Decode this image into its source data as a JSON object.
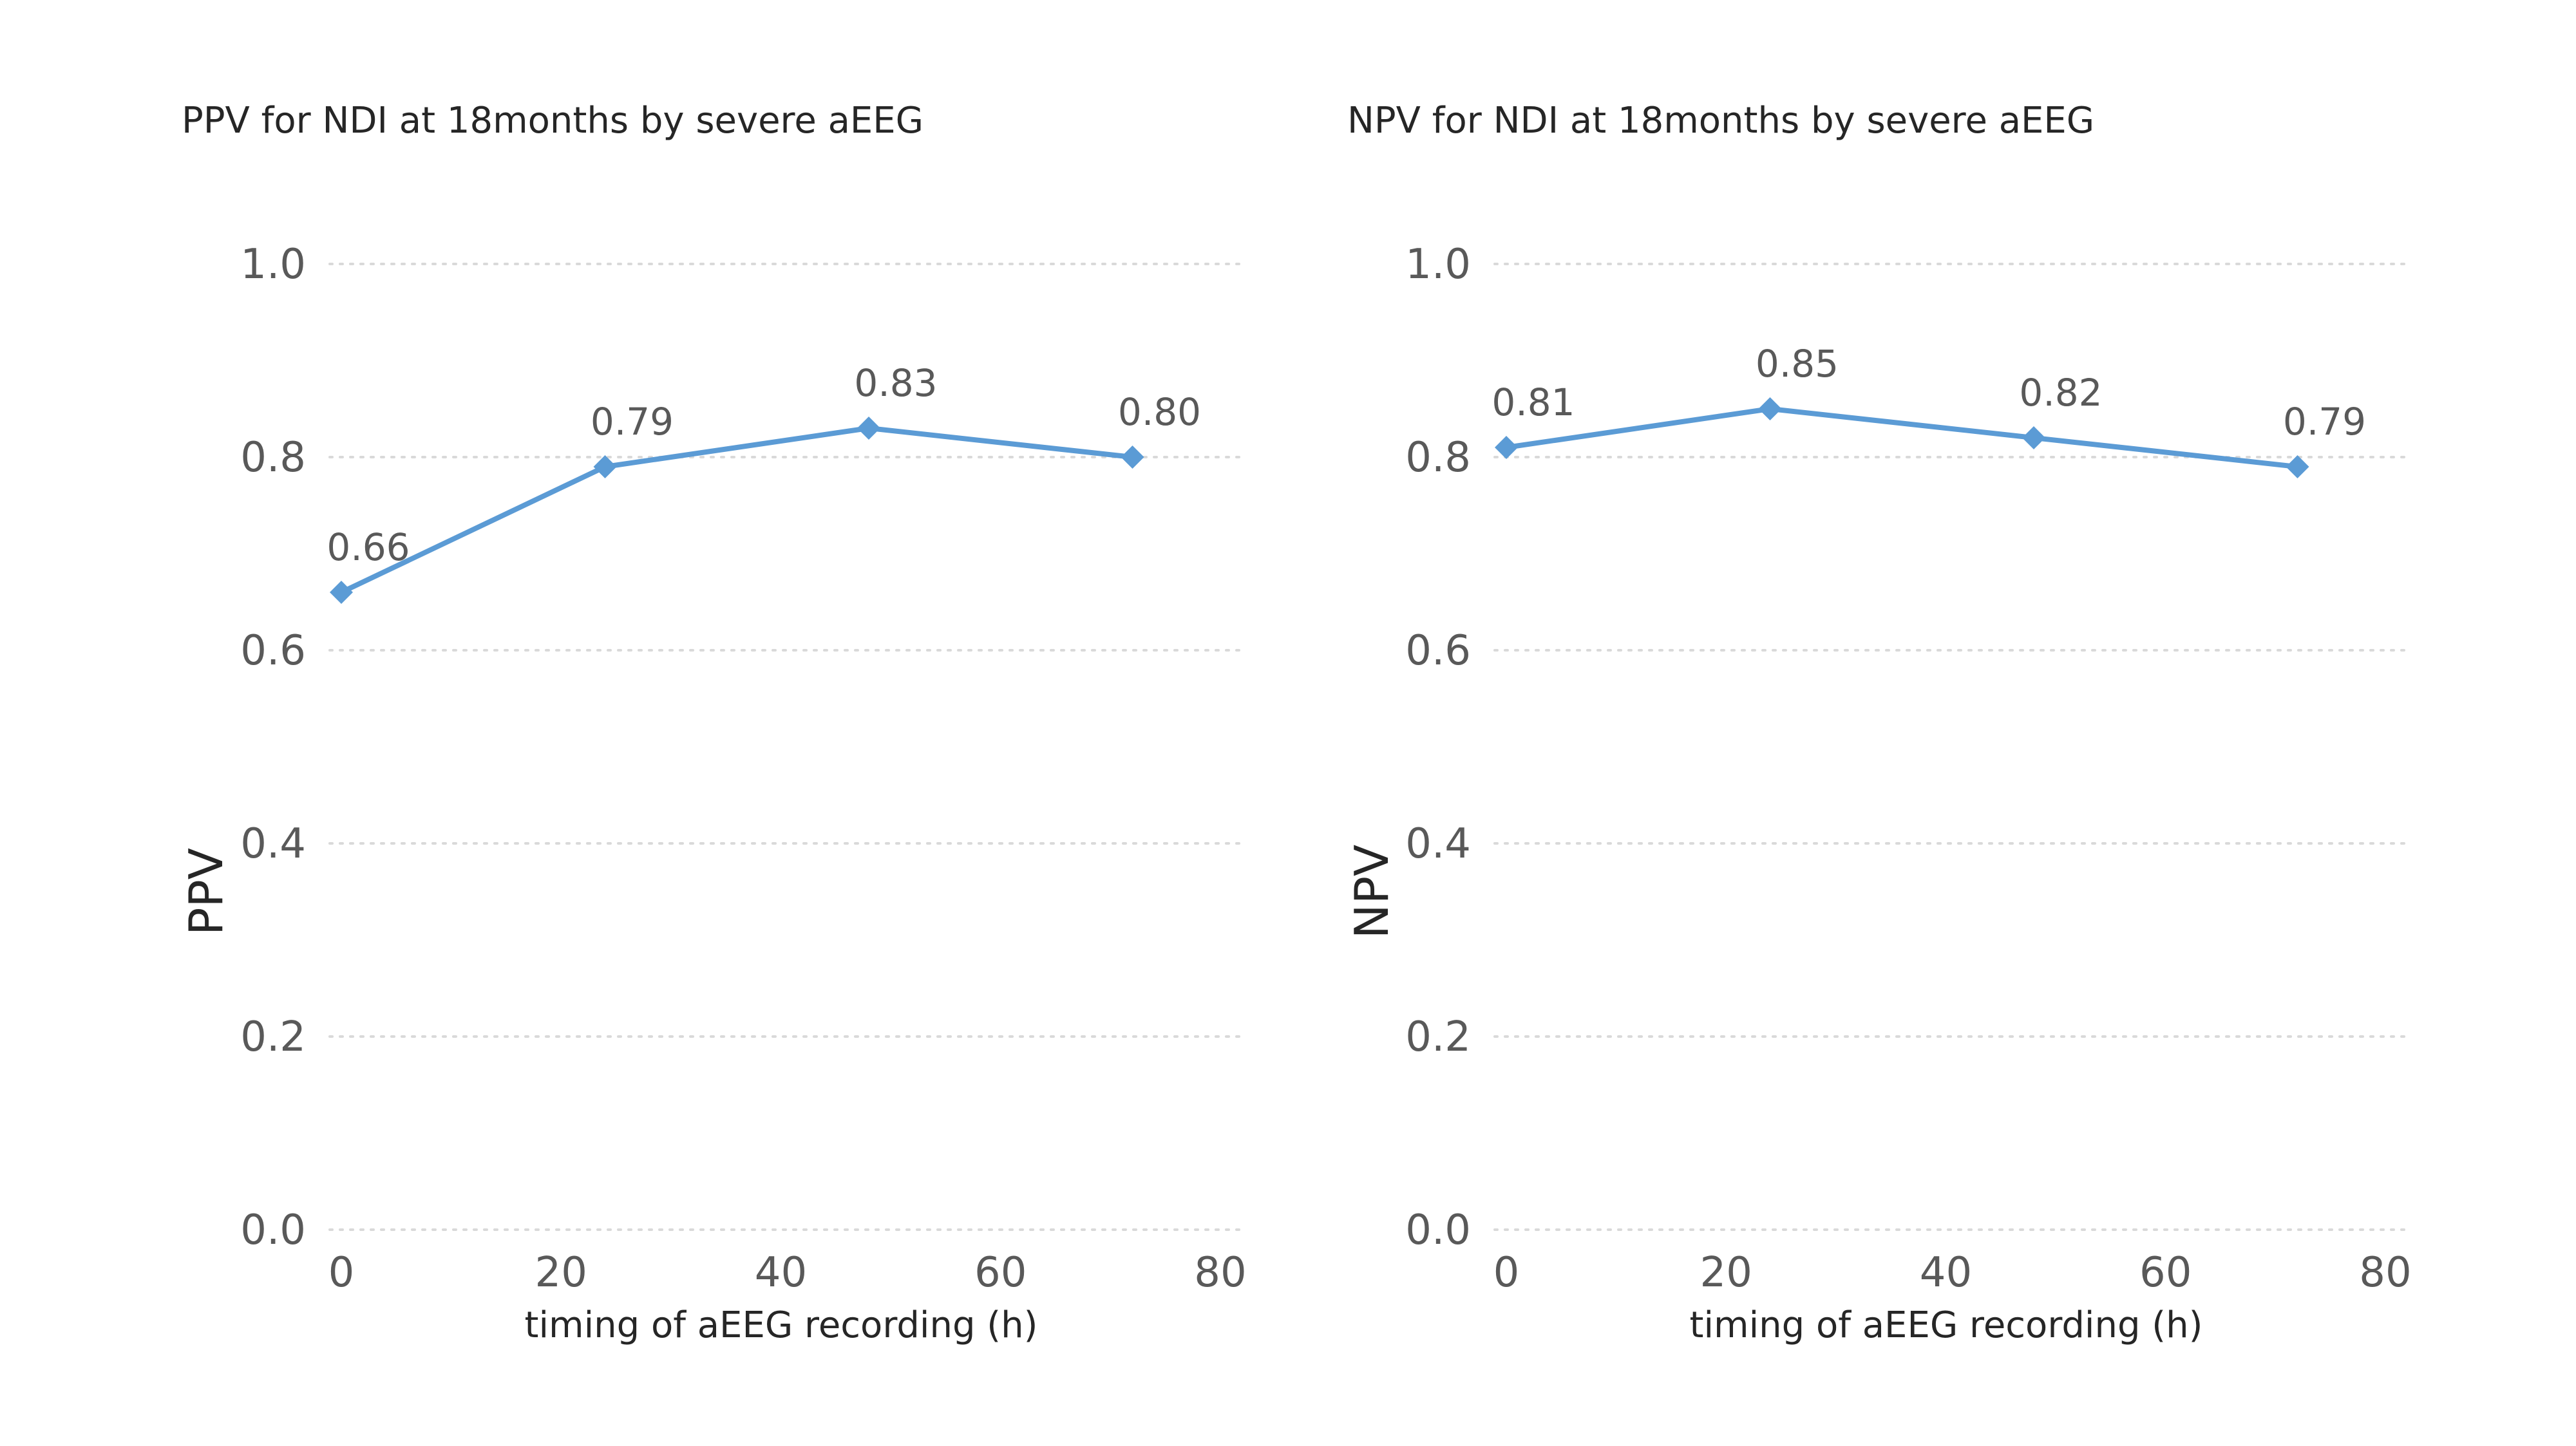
{
  "chart_data": [
    {
      "type": "line",
      "title": "PPV for NDI at 18months by severe aEEG",
      "xlabel": "timing of aEEG recording (h)",
      "ylabel": "PPV",
      "xlim": [
        0,
        80
      ],
      "ylim": [
        0,
        1.0
      ],
      "x_ticks": [
        "0",
        "20",
        "40",
        "60",
        "80"
      ],
      "y_ticks": [
        "0.0",
        "0.2",
        "0.4",
        "0.6",
        "0.8",
        "1.0"
      ],
      "grid": "horizontal dotted",
      "marker": "diamond",
      "color": "#5b9bd5",
      "series": [
        {
          "x": [
            0,
            24,
            48,
            72
          ],
          "values": [
            0.66,
            0.79,
            0.83,
            0.8
          ],
          "labels": [
            "0.66",
            "0.79",
            "0.83",
            "0.80"
          ]
        }
      ]
    },
    {
      "type": "line",
      "title": "NPV for NDI at 18months by severe aEEG",
      "xlabel": "timing of aEEG recording (h)",
      "ylabel": "NPV",
      "xlim": [
        0,
        80
      ],
      "ylim": [
        0,
        1.0
      ],
      "x_ticks": [
        "0",
        "20",
        "40",
        "60",
        "80"
      ],
      "y_ticks": [
        "0.0",
        "0.2",
        "0.4",
        "0.6",
        "0.8",
        "1.0"
      ],
      "grid": "horizontal dotted",
      "marker": "diamond",
      "color": "#5b9bd5",
      "series": [
        {
          "x": [
            0,
            24,
            48,
            72
          ],
          "values": [
            0.81,
            0.85,
            0.82,
            0.79
          ],
          "labels": [
            "0.81",
            "0.85",
            "0.82",
            "0.79"
          ]
        }
      ]
    }
  ]
}
